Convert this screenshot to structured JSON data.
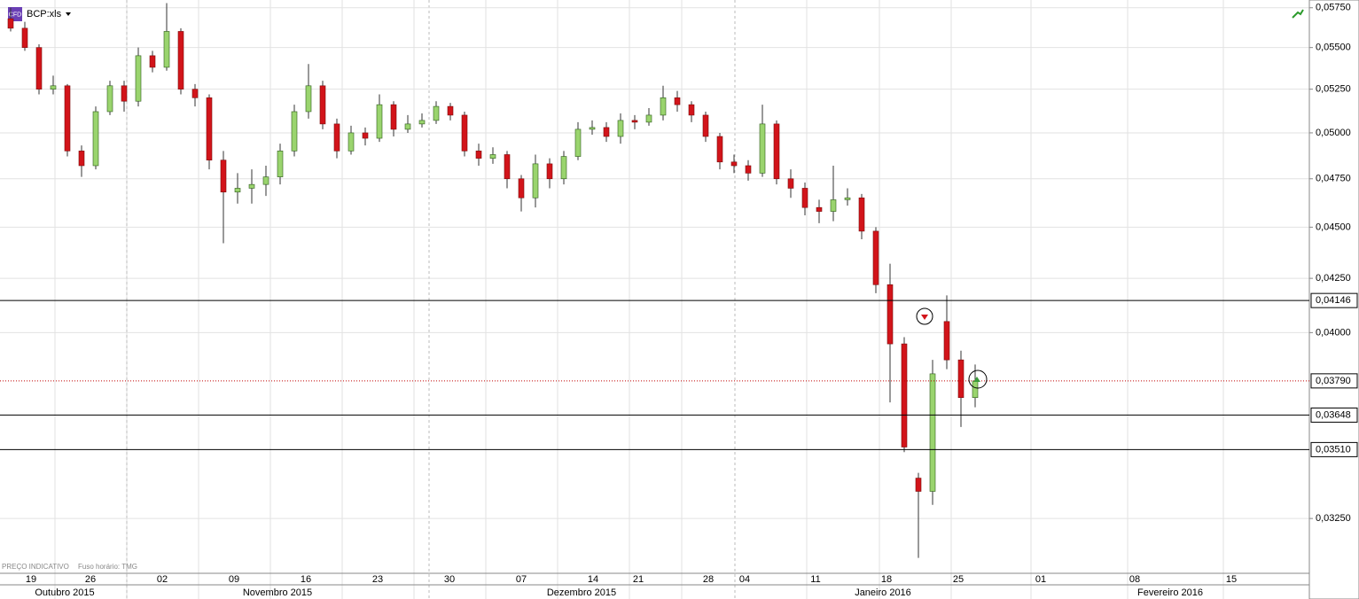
{
  "chart_data": {
    "type": "candlestick",
    "title": "BCP:xls",
    "badge": "CFD",
    "footnote": [
      "PREÇO INDICATIVO",
      "Fuso horário: TMG"
    ],
    "log_scale": true,
    "grid": true,
    "up_color": "#9ad46e",
    "down_color": "#d2141a",
    "ylim": [
      0.0306,
      0.058
    ],
    "yticks": [
      {
        "value": 0.0575,
        "label": "0,05750"
      },
      {
        "value": 0.055,
        "label": "0,05500"
      },
      {
        "value": 0.0525,
        "label": "0,05250"
      },
      {
        "value": 0.05,
        "label": "0,05000"
      },
      {
        "value": 0.0475,
        "label": "0,04750"
      },
      {
        "value": 0.045,
        "label": "0,04500"
      },
      {
        "value": 0.0425,
        "label": "0,04250"
      },
      {
        "value": 0.04,
        "label": "0,04000"
      },
      {
        "value": 0.0325,
        "label": "0,03250"
      }
    ],
    "levels": [
      {
        "value": 0.04146,
        "label": "0,04146",
        "style": "solid",
        "color": "#000000"
      },
      {
        "value": 0.0379,
        "label": "0,03790",
        "style": "dotted",
        "color": "#c00000"
      },
      {
        "value": 0.03648,
        "label": "0,03648",
        "style": "solid",
        "color": "#000000"
      },
      {
        "value": 0.0351,
        "label": "0,03510",
        "style": "solid",
        "color": "#000000"
      }
    ],
    "day_labels": [
      "19",
      "26",
      "02",
      "09",
      "16",
      "23",
      "30",
      "07",
      "14",
      "21",
      "28",
      "04",
      "11",
      "18",
      "25",
      "01",
      "08",
      "15"
    ],
    "month_labels": [
      "Outubro 2015",
      "Novembro 2015",
      "Dezembro 2015",
      "Janeiro 2016",
      "Fevereiro 2016"
    ],
    "open": [
      0.0568,
      0.0562,
      0.055,
      0.0525,
      0.0527,
      0.049,
      0.0482,
      0.0512,
      0.0527,
      0.0518,
      0.0545,
      0.0538,
      0.056,
      0.0525,
      0.052,
      0.0485,
      0.0468,
      0.047,
      0.0472,
      0.0476,
      0.049,
      0.0512,
      0.0527,
      0.0505,
      0.049,
      0.05,
      0.0497,
      0.0516,
      0.0502,
      0.0505,
      0.0507,
      0.0515,
      0.051,
      0.049,
      0.0486,
      0.0488,
      0.0475,
      0.0465,
      0.0483,
      0.0475,
      0.0487,
      0.0502,
      0.0503,
      0.0498,
      0.0507,
      0.0506,
      0.051,
      0.052,
      0.0516,
      0.051,
      0.0498,
      0.0484,
      0.0482,
      0.0478,
      0.0505,
      0.0475,
      0.047,
      0.046,
      0.0458,
      0.0464,
      0.0465,
      0.0448,
      0.0422,
      0.0395,
      0.034,
      0.0335,
      0.0405,
      0.0388,
      0.0372
    ],
    "high": [
      0.0575,
      0.0566,
      0.0552,
      0.0533,
      0.0528,
      0.0493,
      0.0515,
      0.053,
      0.053,
      0.055,
      0.0548,
      0.0578,
      0.0562,
      0.0528,
      0.0522,
      0.049,
      0.0478,
      0.048,
      0.0482,
      0.0494,
      0.0516,
      0.054,
      0.053,
      0.0508,
      0.0504,
      0.0503,
      0.0522,
      0.0518,
      0.051,
      0.0511,
      0.0518,
      0.0517,
      0.0512,
      0.0494,
      0.0492,
      0.049,
      0.0477,
      0.0488,
      0.0486,
      0.049,
      0.0506,
      0.0507,
      0.0506,
      0.0511,
      0.051,
      0.0514,
      0.0527,
      0.0524,
      0.0518,
      0.0512,
      0.05,
      0.0488,
      0.0485,
      0.0516,
      0.0507,
      0.048,
      0.0473,
      0.0464,
      0.0482,
      0.047,
      0.0467,
      0.045,
      0.0432,
      0.0398,
      0.0342,
      0.0388,
      0.0417,
      0.0392,
      0.0386
    ],
    "low": [
      0.056,
      0.0548,
      0.0522,
      0.0522,
      0.0487,
      0.0476,
      0.048,
      0.051,
      0.0512,
      0.0515,
      0.0535,
      0.0536,
      0.0522,
      0.0515,
      0.048,
      0.0442,
      0.0462,
      0.0462,
      0.0466,
      0.0472,
      0.0487,
      0.0508,
      0.0502,
      0.0486,
      0.0488,
      0.0493,
      0.0495,
      0.0498,
      0.05,
      0.0503,
      0.0505,
      0.0507,
      0.0487,
      0.0482,
      0.0483,
      0.047,
      0.0458,
      0.046,
      0.047,
      0.0472,
      0.0485,
      0.0499,
      0.0495,
      0.0494,
      0.0502,
      0.0504,
      0.0507,
      0.0512,
      0.0506,
      0.0495,
      0.048,
      0.0478,
      0.0474,
      0.0476,
      0.0472,
      0.0465,
      0.0456,
      0.0452,
      0.0453,
      0.0461,
      0.0444,
      0.0418,
      0.037,
      0.035,
      0.0311,
      0.033,
      0.0384,
      0.036,
      0.0368
    ],
    "close": [
      0.0562,
      0.055,
      0.0525,
      0.0527,
      0.049,
      0.0482,
      0.0512,
      0.0527,
      0.0518,
      0.0545,
      0.0538,
      0.056,
      0.0525,
      0.052,
      0.0485,
      0.0468,
      0.047,
      0.0472,
      0.0476,
      0.049,
      0.0512,
      0.0527,
      0.0505,
      0.049,
      0.05,
      0.0497,
      0.0516,
      0.0502,
      0.0505,
      0.0507,
      0.0515,
      0.051,
      0.049,
      0.0486,
      0.0488,
      0.0475,
      0.0465,
      0.0483,
      0.0475,
      0.0487,
      0.0502,
      0.0503,
      0.0498,
      0.0507,
      0.0506,
      0.051,
      0.052,
      0.0516,
      0.051,
      0.0498,
      0.0484,
      0.0482,
      0.0478,
      0.0505,
      0.0475,
      0.047,
      0.046,
      0.0458,
      0.0464,
      0.0465,
      0.0448,
      0.0422,
      0.0395,
      0.0352,
      0.0335,
      0.0382,
      0.0388,
      0.0372,
      0.0379
    ]
  }
}
